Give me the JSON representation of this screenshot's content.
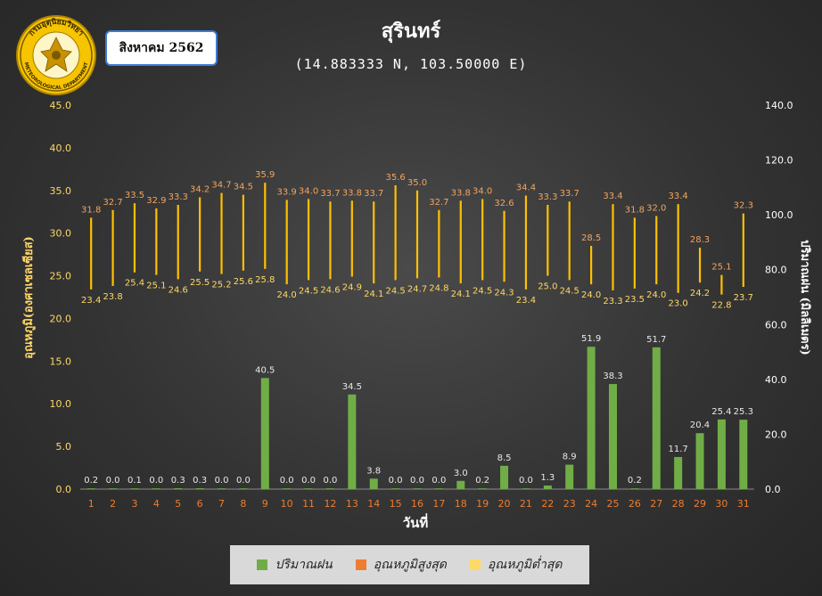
{
  "badge": "สิงหาคม 2562",
  "logo": {
    "top_text": "กรมอุตุนิยมวิทยา",
    "bottom_text": "METEOROLOGICAL DEPARTMENT"
  },
  "colors": {
    "rain": "#70ad47",
    "tmax": "#ed7d31",
    "tmin": "#ffc000",
    "tmax_label": "#f4a460",
    "tmin_label": "#ffd966",
    "axis_left": "#ffd966",
    "tick_x": "#ed7d31"
  },
  "legend": [
    {
      "label": "ปริมาณฝน",
      "color": "#70ad47"
    },
    {
      "label": "อุณหภูมิสูงสุด",
      "color": "#ed7d31"
    },
    {
      "label": "อุณหภูมิต่ำสุด",
      "color": "#ffd966"
    }
  ],
  "chart_data": {
    "type": "bar",
    "title": "สุรินทร์",
    "subtitle": "(14.883333 N, 103.50000 E)",
    "xlabel": "วันที่",
    "ylabel": "อุณหภูมิ(องศาเซลเซียส)",
    "y2label": "ปริมาณฝน (มิลลิเมตร)",
    "ylim": [
      0,
      45
    ],
    "y2lim": [
      0,
      140
    ],
    "yticks": [
      "0.0",
      "5.0",
      "10.0",
      "15.0",
      "20.0",
      "25.0",
      "30.0",
      "35.0",
      "40.0",
      "45.0"
    ],
    "y2ticks": [
      "0.0",
      "20.0",
      "40.0",
      "60.0",
      "80.0",
      "100.0",
      "120.0",
      "140.0"
    ],
    "categories": [
      "1",
      "2",
      "3",
      "4",
      "5",
      "6",
      "7",
      "8",
      "9",
      "10",
      "11",
      "12",
      "13",
      "14",
      "15",
      "16",
      "17",
      "18",
      "19",
      "20",
      "21",
      "22",
      "23",
      "24",
      "25",
      "26",
      "27",
      "28",
      "29",
      "30",
      "31"
    ],
    "series": [
      {
        "name": "ปริมาณฝน",
        "axis": "right",
        "values": [
          0.2,
          0.0,
          0.1,
          0.0,
          0.3,
          0.3,
          0.0,
          0.0,
          40.5,
          0.0,
          0.0,
          0.0,
          34.5,
          3.8,
          0.0,
          0.0,
          0.0,
          3.0,
          0.2,
          8.5,
          0.0,
          1.3,
          8.9,
          51.9,
          38.3,
          0.2,
          51.7,
          11.7,
          20.4,
          25.4,
          25.3
        ],
        "labels": [
          "0.2",
          "0.0",
          "0.1",
          "0.0",
          "0.3",
          "0.3",
          "0.0",
          "0.0",
          "40.5",
          "0.0",
          "0.0",
          "0.0",
          "34.5",
          "3.8",
          "0.0",
          "0.0",
          "0.0",
          "3.0",
          "0.2",
          "8.5",
          "0.0",
          "1.3",
          "8.9",
          "51.9",
          "38.3",
          "0.2",
          "51.7",
          "11.7",
          "20.4",
          "25.4",
          "25.3"
        ]
      },
      {
        "name": "อุณหภูมิสูงสุด",
        "axis": "left",
        "values": [
          31.8,
          32.7,
          33.5,
          32.9,
          33.3,
          34.2,
          34.7,
          34.5,
          35.9,
          33.9,
          34.0,
          33.7,
          33.8,
          33.7,
          35.6,
          35.0,
          32.7,
          33.8,
          34.0,
          32.6,
          34.4,
          33.3,
          33.7,
          28.5,
          33.4,
          31.8,
          32.0,
          33.4,
          28.3,
          25.1,
          32.3
        ],
        "labels": [
          "31.8",
          "32.7",
          "33.5",
          "32.9",
          "33.3",
          "34.2",
          "34.7",
          "34.5",
          "35.9",
          "33.9",
          "34.0",
          "33.7",
          "33.8",
          "33.7",
          "35.6",
          "35.0",
          "32.7",
          "33.8",
          "34.0",
          "32.6",
          "34.4",
          "33.3",
          "33.7",
          "28.5",
          "33.4",
          "31.8",
          "32.0",
          "33.4",
          "28.3",
          "25.1",
          "32.3"
        ]
      },
      {
        "name": "อุณหภูมิต่ำสุด",
        "axis": "left",
        "values": [
          23.4,
          23.8,
          25.4,
          25.1,
          24.6,
          25.5,
          25.2,
          25.6,
          25.8,
          24.0,
          24.5,
          24.6,
          24.9,
          24.1,
          24.5,
          24.7,
          24.8,
          24.1,
          24.5,
          24.3,
          23.4,
          25.0,
          24.5,
          24.0,
          23.3,
          23.5,
          24.0,
          23.0,
          24.2,
          22.8,
          23.7
        ],
        "labels": [
          "23.4",
          "23.8",
          "25.4",
          "25.1",
          "24.6",
          "25.5",
          "25.2",
          "25.6",
          "25.8",
          "24.0",
          "24.5",
          "24.6",
          "24.9",
          "24.1",
          "24.5",
          "24.7",
          "24.8",
          "24.1",
          "24.5",
          "24.3",
          "23.4",
          "25.0",
          "24.5",
          "24.0",
          "23.3",
          "23.5",
          "24.0",
          "23.0",
          "24.2",
          "22.8",
          "23.7"
        ]
      }
    ]
  }
}
